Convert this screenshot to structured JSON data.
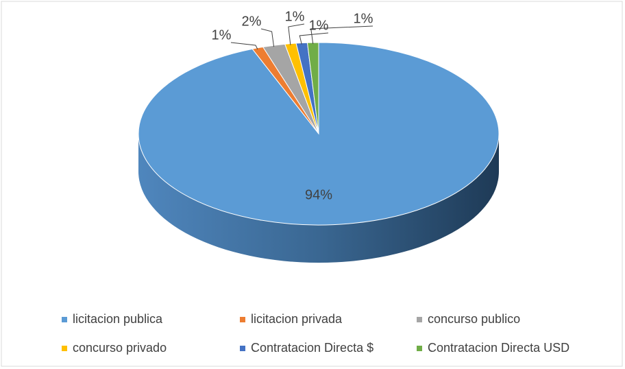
{
  "chart_data": {
    "type": "pie",
    "categories": [
      "licitacion publica",
      "licitacion privada",
      "concurso publico",
      "concurso privado",
      "Contratacion Directa $",
      "Contratacion Directa USD"
    ],
    "values": [
      94,
      1,
      2,
      1,
      1,
      1
    ],
    "value_labels": [
      "94%",
      "1%",
      "2%",
      "1%",
      "1%",
      "1%"
    ],
    "colors": [
      "#5b9bd5",
      "#ed7d31",
      "#a5a5a5",
      "#ffc000",
      "#4472c4",
      "#70ad47"
    ],
    "legend": "bottom"
  }
}
